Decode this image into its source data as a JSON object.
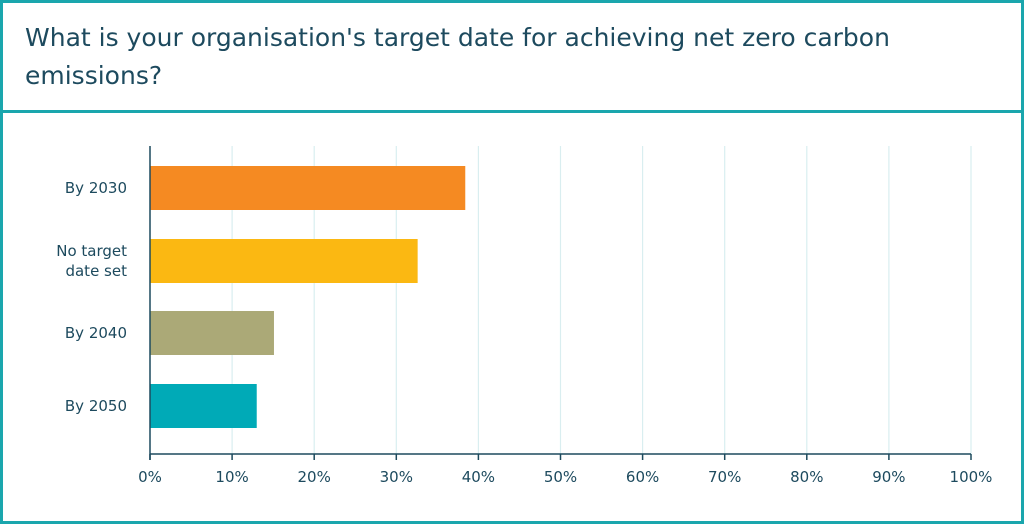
{
  "title": "What is your organisation's target date for achieving net zero carbon emissions?",
  "chart_data": {
    "type": "bar",
    "orientation": "horizontal",
    "categories": [
      "By 2030",
      "No target date set",
      "By 2040",
      "By 2050"
    ],
    "category_lines": [
      [
        "By 2030"
      ],
      [
        "No target",
        "date set"
      ],
      [
        "By 2040"
      ],
      [
        "By 2050"
      ]
    ],
    "values": [
      38.4,
      32.6,
      15.1,
      13.0
    ],
    "colors": [
      "#f58a22",
      "#fbb812",
      "#aba977",
      "#00aab7"
    ],
    "xlim": [
      0,
      100
    ],
    "xticks": [
      "0%",
      "10%",
      "20%",
      "30%",
      "40%",
      "50%",
      "60%",
      "70%",
      "80%",
      "90%",
      "100%"
    ],
    "grid": true,
    "xlabel": "",
    "ylabel": ""
  }
}
